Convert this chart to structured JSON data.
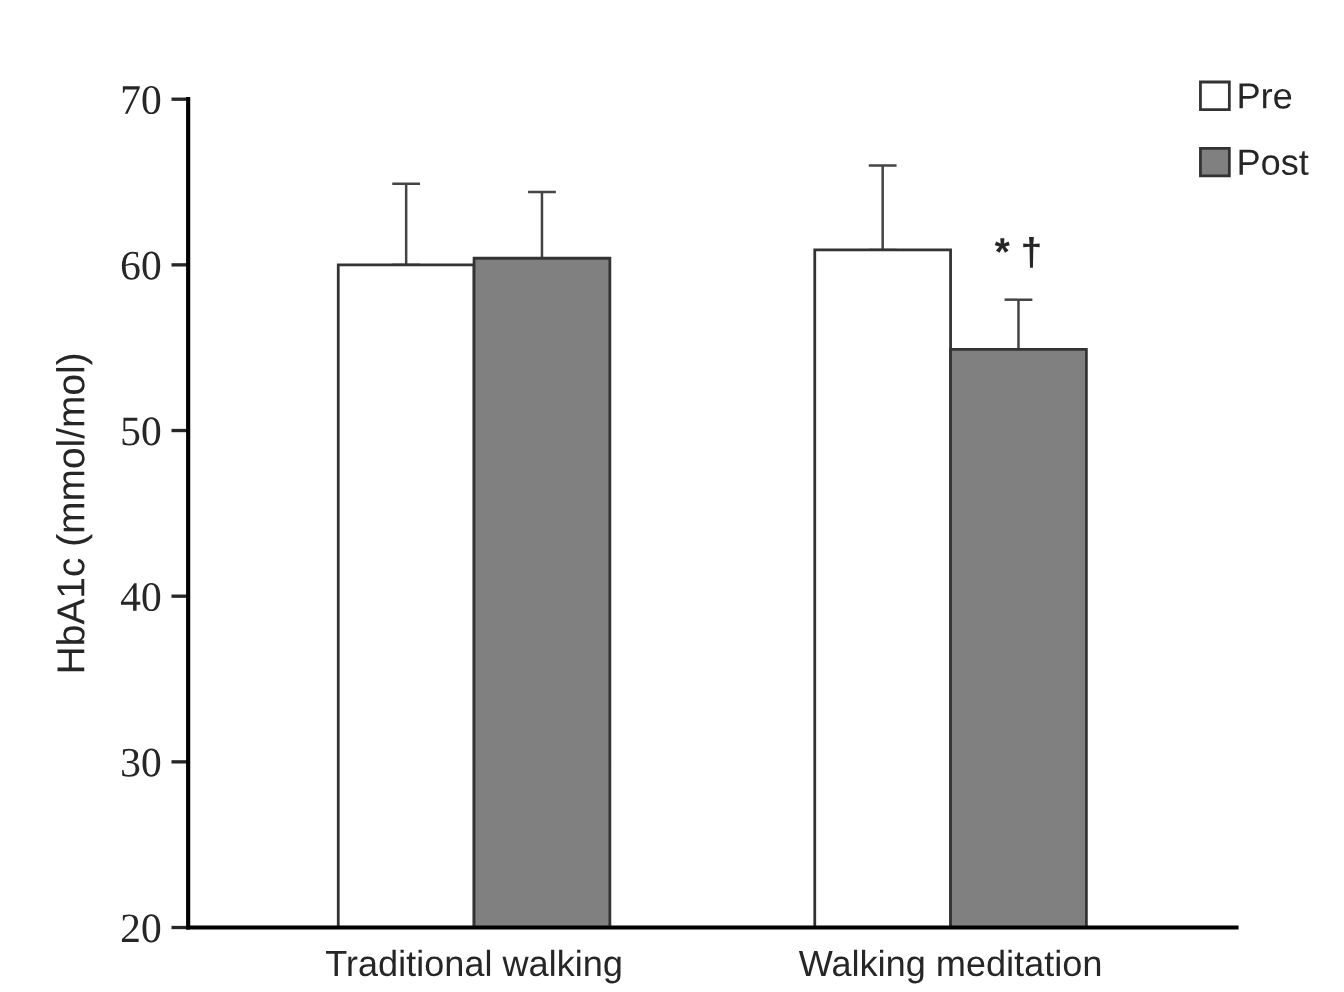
{
  "chart_data": {
    "type": "bar",
    "ylabel": "HbA1c (mmol/mol)",
    "categories": [
      "Traditional walking",
      "Walking meditation"
    ],
    "series": [
      {
        "name": "Pre",
        "color": "#ffffff",
        "values": [
          60.0,
          60.9
        ],
        "errors": [
          [
            60.0,
            64.9
          ],
          [
            60.9,
            66.0
          ]
        ]
      },
      {
        "name": "Post",
        "color": "#808080",
        "values": [
          60.4,
          54.9
        ],
        "errors": [
          [
            60.4,
            64.4
          ],
          [
            54.9,
            57.9
          ]
        ]
      }
    ],
    "ylim": [
      20,
      70
    ],
    "yticks": [
      20,
      30,
      40,
      50,
      60,
      70
    ],
    "annotations": [
      {
        "text": "* †",
        "x": "Walking meditation",
        "y": 59.5
      }
    ],
    "legend": "top right",
    "grid": false
  }
}
